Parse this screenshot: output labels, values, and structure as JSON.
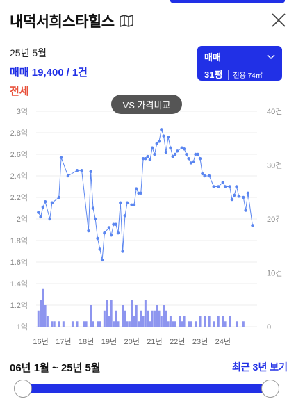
{
  "header": {
    "title": "내덕서희스타힐스"
  },
  "summary": {
    "date": "25년 5월",
    "deal_type": "매매",
    "price": "19,400",
    "count": "1건",
    "jeonse_label": "전세"
  },
  "type_selector": {
    "label": "매매",
    "area": "31평",
    "exclusive": "전용 74㎡"
  },
  "vs_button": "VS 가격비교",
  "colors": {
    "accent": "#2130e6",
    "jeonse": "#e8503a",
    "line": "#5b86f0",
    "bar": "#8d95ef"
  },
  "chart_data": {
    "type": "line",
    "y_left_ticks": [
      "3억",
      "2.8억",
      "2.6억",
      "2.4억",
      "2.2억",
      "2억",
      "1.8억",
      "1.6억",
      "1.4억",
      "1.2억",
      "1억"
    ],
    "y_right_ticks": [
      "40건",
      "30건",
      "20건",
      "10건",
      "0"
    ],
    "x_ticks": [
      "16년",
      "17년",
      "18년",
      "19년",
      "20년",
      "21년",
      "22년",
      "23년",
      "24년"
    ],
    "ylim": [
      1.0,
      3.0
    ],
    "y2lim": [
      0,
      40
    ],
    "xlim": [
      2015.8,
      2025.5
    ],
    "price_series": [
      [
        2015.9,
        2.06
      ],
      [
        2016.0,
        2.02
      ],
      [
        2016.1,
        2.11
      ],
      [
        2016.2,
        2.16
      ],
      [
        2016.4,
        2.0
      ],
      [
        2016.5,
        2.15
      ],
      [
        2016.8,
        2.2
      ],
      [
        2016.9,
        2.57
      ],
      [
        2017.2,
        2.4
      ],
      [
        2017.6,
        2.45
      ],
      [
        2017.8,
        2.45
      ],
      [
        2018.1,
        1.89
      ],
      [
        2018.2,
        2.44
      ],
      [
        2018.3,
        2.1
      ],
      [
        2018.4,
        2.0
      ],
      [
        2018.5,
        1.82
      ],
      [
        2018.6,
        1.72
      ],
      [
        2018.7,
        1.62
      ],
      [
        2018.8,
        1.87
      ],
      [
        2019.0,
        1.92
      ],
      [
        2019.1,
        1.85
      ],
      [
        2019.2,
        1.95
      ],
      [
        2019.3,
        1.95
      ],
      [
        2019.4,
        1.87
      ],
      [
        2019.5,
        2.15
      ],
      [
        2019.6,
        1.7
      ],
      [
        2019.7,
        2.03
      ],
      [
        2019.8,
        2.15
      ],
      [
        2020.0,
        2.13
      ],
      [
        2020.1,
        2.13
      ],
      [
        2020.2,
        2.28
      ],
      [
        2020.3,
        2.24
      ],
      [
        2020.4,
        2.24
      ],
      [
        2020.5,
        2.56
      ],
      [
        2020.6,
        2.56
      ],
      [
        2020.7,
        2.58
      ],
      [
        2020.8,
        2.55
      ],
      [
        2020.9,
        2.66
      ],
      [
        2021.0,
        2.6
      ],
      [
        2021.1,
        2.7
      ],
      [
        2021.2,
        2.72
      ],
      [
        2021.3,
        2.83
      ],
      [
        2021.4,
        2.77
      ],
      [
        2021.5,
        2.62
      ],
      [
        2021.6,
        2.76
      ],
      [
        2021.7,
        2.66
      ],
      [
        2021.8,
        2.58
      ],
      [
        2021.9,
        2.6
      ],
      [
        2022.0,
        2.63
      ],
      [
        2022.2,
        2.66
      ],
      [
        2022.3,
        2.65
      ],
      [
        2022.4,
        2.6
      ],
      [
        2022.5,
        2.56
      ],
      [
        2022.6,
        2.52
      ],
      [
        2022.7,
        2.53
      ],
      [
        2022.8,
        2.6
      ],
      [
        2022.9,
        2.6
      ],
      [
        2023.0,
        2.56
      ],
      [
        2023.1,
        2.42
      ],
      [
        2023.2,
        2.4
      ],
      [
        2023.4,
        2.4
      ],
      [
        2023.6,
        2.3
      ],
      [
        2023.8,
        2.3
      ],
      [
        2024.0,
        2.34
      ],
      [
        2024.1,
        2.3
      ],
      [
        2024.3,
        2.3
      ],
      [
        2024.4,
        2.18
      ],
      [
        2024.5,
        2.22
      ],
      [
        2024.6,
        2.3
      ],
      [
        2024.7,
        2.21
      ],
      [
        2024.9,
        2.2
      ],
      [
        2025.0,
        2.08
      ],
      [
        2025.1,
        2.24
      ],
      [
        2025.3,
        1.94
      ]
    ],
    "volume_series": [
      [
        2015.9,
        3
      ],
      [
        2016.0,
        5
      ],
      [
        2016.1,
        7
      ],
      [
        2016.2,
        4
      ],
      [
        2016.3,
        2
      ],
      [
        2016.5,
        1
      ],
      [
        2016.6,
        1
      ],
      [
        2016.8,
        1
      ],
      [
        2017.0,
        1
      ],
      [
        2017.4,
        1
      ],
      [
        2017.6,
        1
      ],
      [
        2017.9,
        1
      ],
      [
        2018.0,
        1
      ],
      [
        2018.2,
        4
      ],
      [
        2018.3,
        1
      ],
      [
        2018.5,
        1
      ],
      [
        2018.6,
        1
      ],
      [
        2018.8,
        3
      ],
      [
        2018.9,
        5
      ],
      [
        2019.0,
        2
      ],
      [
        2019.1,
        5
      ],
      [
        2019.2,
        1
      ],
      [
        2019.3,
        3
      ],
      [
        2019.4,
        1
      ],
      [
        2019.6,
        4
      ],
      [
        2019.7,
        3
      ],
      [
        2019.8,
        1
      ],
      [
        2019.9,
        1
      ],
      [
        2020.0,
        5
      ],
      [
        2020.1,
        2
      ],
      [
        2020.2,
        4
      ],
      [
        2020.3,
        1
      ],
      [
        2020.4,
        3
      ],
      [
        2020.5,
        2
      ],
      [
        2020.6,
        5
      ],
      [
        2020.7,
        3
      ],
      [
        2020.8,
        1
      ],
      [
        2020.9,
        3
      ],
      [
        2021.0,
        3
      ],
      [
        2021.1,
        4
      ],
      [
        2021.2,
        3
      ],
      [
        2021.3,
        2
      ],
      [
        2021.4,
        4
      ],
      [
        2021.5,
        3
      ],
      [
        2021.6,
        1
      ],
      [
        2021.7,
        2
      ],
      [
        2021.8,
        1
      ],
      [
        2021.9,
        1
      ],
      [
        2022.1,
        2
      ],
      [
        2022.2,
        1
      ],
      [
        2022.3,
        2
      ],
      [
        2022.5,
        1
      ],
      [
        2022.6,
        1
      ],
      [
        2022.8,
        1
      ],
      [
        2023.0,
        2
      ],
      [
        2023.2,
        2
      ],
      [
        2023.4,
        2
      ],
      [
        2023.6,
        1
      ],
      [
        2023.8,
        2
      ],
      [
        2024.0,
        2
      ],
      [
        2024.1,
        1
      ],
      [
        2024.3,
        2
      ],
      [
        2024.6,
        1
      ],
      [
        2024.9,
        1
      ]
    ]
  },
  "range": {
    "label": "06년 1월 ~ 25년 5월",
    "recent_link": "최근 3년 보기"
  }
}
